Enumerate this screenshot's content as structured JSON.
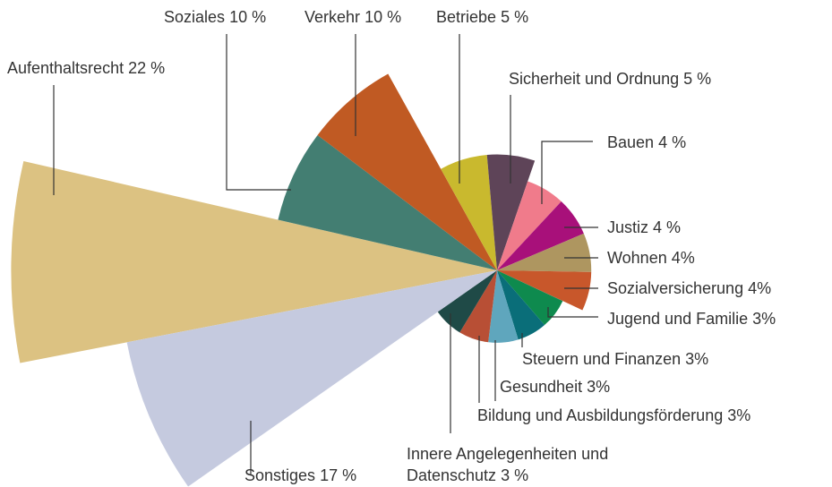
{
  "chart_data": {
    "type": "rose",
    "categories": [
      "Aufenthaltsrecht",
      "Soziales",
      "Verkehr",
      "Betriebe",
      "Sicherheit und Ordnung",
      "Bauen",
      "Justiz",
      "Wohnen",
      "Sozialversicherung",
      "Jugend und Familie",
      "Steuern und Finanzen",
      "Gesundheit",
      "Bildung und Ausbildungsförderung",
      "Innere Angelegenheiten und Datenschutz",
      "Sonstiges"
    ],
    "values": [
      22,
      10,
      10,
      5,
      5,
      4,
      4,
      4,
      4,
      3,
      3,
      3,
      3,
      3,
      17
    ],
    "value_labels": [
      "22 %",
      "10 %",
      "10 %",
      "5 %",
      "5 %",
      "4 %",
      "4 %",
      "4%",
      "4%",
      "3%",
      "3%",
      "3%",
      "3%",
      "3 %",
      "17 %"
    ],
    "colors": [
      "#dcc282",
      "#437e72",
      "#c05a23",
      "#c9b92e",
      "#5e4458",
      "#f07b8b",
      "#a8107a",
      "#ae9660",
      "#c8572b",
      "#0e8a4e",
      "#0a6e79",
      "#5fa6bd",
      "#b84f35",
      "#1f4a47",
      "#c5cadf"
    ]
  }
}
